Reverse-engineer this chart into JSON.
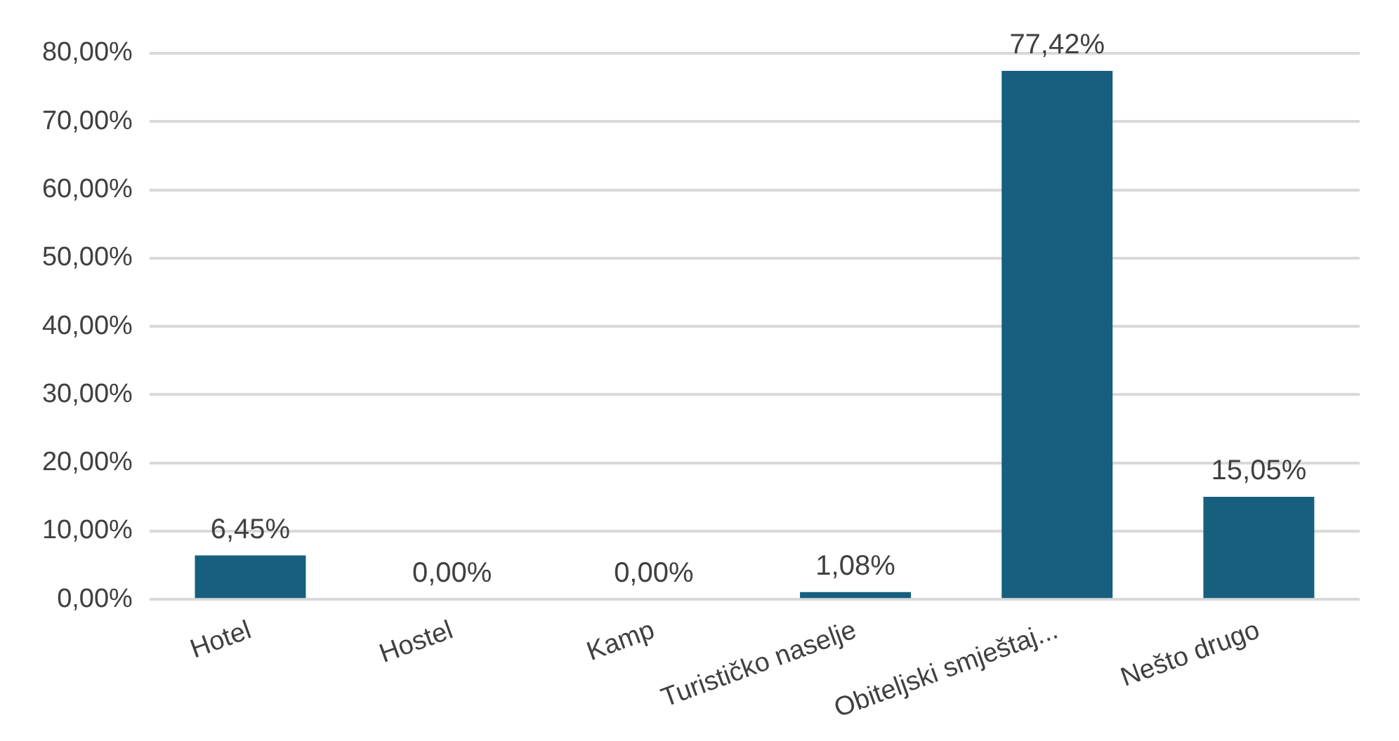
{
  "chart_data": {
    "type": "bar",
    "categories": [
      "Hotel",
      "Hostel",
      "Kamp",
      "Turističko naselje",
      "Obiteljski smještaj...",
      "Nešto drugo"
    ],
    "values": [
      6.45,
      0,
      0,
      1.08,
      77.42,
      15.05
    ],
    "value_labels": [
      "6,45%",
      "0,00%",
      "0,00%",
      "1,08%",
      "77,42%",
      "15,05%"
    ],
    "color": "#175f7f",
    "ylim": [
      0,
      80
    ],
    "yticks": [
      {
        "value": 0,
        "label": "0,00%"
      },
      {
        "value": 10,
        "label": "10,00%"
      },
      {
        "value": 20,
        "label": "20,00%"
      },
      {
        "value": 30,
        "label": "30,00%"
      },
      {
        "value": 40,
        "label": "40,00%"
      },
      {
        "value": 50,
        "label": "50,00%"
      },
      {
        "value": 60,
        "label": "60,00%"
      },
      {
        "value": 70,
        "label": "70,00%"
      },
      {
        "value": 80,
        "label": "80,00%"
      }
    ],
    "grid": "y",
    "legend": false
  }
}
